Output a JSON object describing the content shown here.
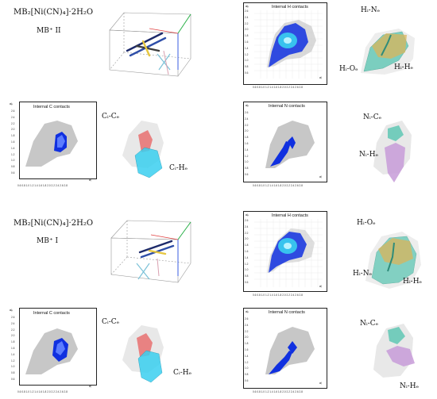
{
  "sections": [
    {
      "formula": "MB₂[Ni(CN)₄]·2H₂O",
      "form": "MB⁺ II",
      "h_panel": {
        "title": "Internal H contacts",
        "yaxis": "dₑ",
        "xaxis": "dᵢ"
      },
      "c_panel": {
        "title": "Internal C contacts",
        "yaxis": "dₑ",
        "xaxis": "dᵢ"
      },
      "n_panel": {
        "title": "Internal N contacts",
        "yaxis": "dₑ",
        "xaxis": "dᵢ"
      },
      "h_labels": [
        "Hᵢ-Nₑ",
        "Hᵢ-Oₑ",
        "Hᵢ-Hₑ"
      ],
      "c_labels": [
        "Cᵢ-Cₑ",
        "Cᵢ-Hₑ"
      ],
      "n_labels": [
        "Nᵢ-Cₑ",
        "Nᵢ-Hₑ"
      ]
    },
    {
      "formula": "MB₂[Ni(CN)₄]·2H₂O",
      "form": "MB⁺ I",
      "h_panel": {
        "title": "Internal H contacts",
        "yaxis": "dₑ",
        "xaxis": "dᵢ"
      },
      "c_panel": {
        "title": "Internal C contacts",
        "yaxis": "dₑ",
        "xaxis": "dᵢ"
      },
      "n_panel": {
        "title": "Internal N contacts",
        "yaxis": "dₑ",
        "xaxis": "dᵢ"
      },
      "h_labels": [
        "Hᵢ-Oₑ",
        "Hᵢ-Nₑ",
        "Hᵢ-Hₑ"
      ],
      "c_labels": [
        "Cᵢ-Cₑ",
        "Cᵢ-Hₑ"
      ],
      "n_labels": [
        "Nᵢ-Cₑ",
        "Nᵢ-Hₑ"
      ]
    }
  ],
  "axis": {
    "y_ticks": [
      "2.6",
      "2.4",
      "2.2",
      "2.0",
      "1.8",
      "1.6",
      "1.4",
      "1.2",
      "1.0",
      "0.8",
      "0.6"
    ],
    "x_ticks": "0.6 0.8 1.0 1.2 1.4 1.6 1.8 2.0 2.2 2.4 2.6 2.8"
  },
  "colors": {
    "blue": "#1030e0",
    "cyan": "#3ad0f0",
    "grey": "#9a9a9a",
    "red": "#e77070",
    "teal": "#5fc7b4",
    "purple": "#c79bd8",
    "gold": "#d9b45a"
  }
}
